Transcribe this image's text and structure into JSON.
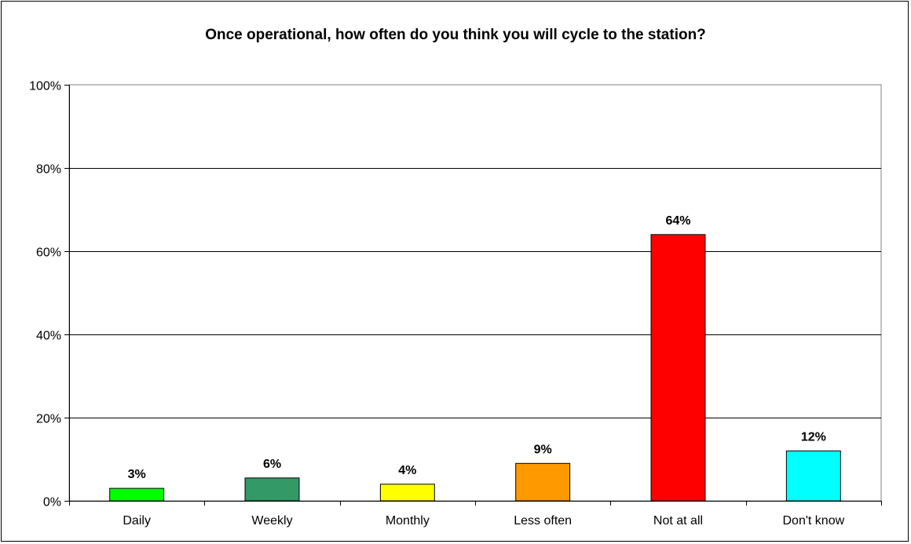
{
  "chart_data": {
    "type": "bar",
    "title": "Once operational, how often do you think you will cycle to the station?",
    "xlabel": "",
    "ylabel": "",
    "categories": [
      "Daily",
      "Weekly",
      "Monthly",
      "Less often",
      "Not at all",
      "Don't know"
    ],
    "values": [
      3,
      5.5,
      4,
      9,
      64,
      12
    ],
    "data_labels": [
      "3%",
      "6%",
      "4%",
      "9%",
      "64%",
      "12%"
    ],
    "bar_colors": [
      "#00ff00",
      "#339966",
      "#ffff00",
      "#ff9900",
      "#ff0000",
      "#00ffff"
    ],
    "ylim": [
      0,
      100
    ],
    "yticks": [
      0,
      20,
      40,
      60,
      80,
      100
    ],
    "ytick_labels": [
      "0%",
      "20%",
      "40%",
      "60%",
      "80%",
      "100%"
    ],
    "grid": true,
    "legend": "none"
  }
}
